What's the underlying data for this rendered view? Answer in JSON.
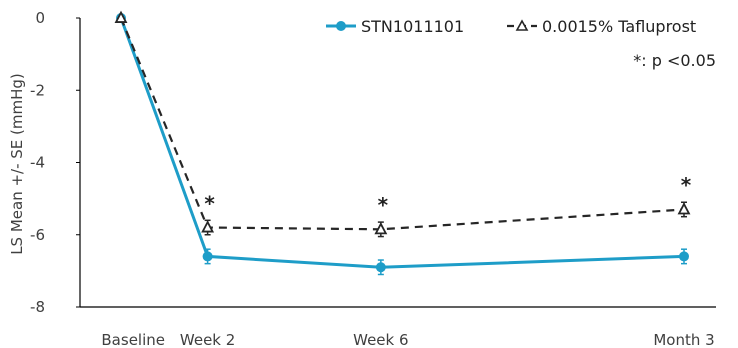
{
  "chart_data": {
    "type": "line",
    "categories": [
      "Baseline",
      "Week 2",
      "Week 6",
      "Month 3"
    ],
    "x": [
      0,
      2,
      6,
      13
    ],
    "ylabel": "LS Mean +/- SE (mmHg)",
    "ylim": [
      -8,
      0
    ],
    "yticks": [
      0,
      -2,
      -4,
      -6,
      -8
    ],
    "grid": false,
    "legend_position": "top-right",
    "series": [
      {
        "name": "STN1011101",
        "values": [
          0,
          -6.6,
          -6.9,
          -6.6
        ],
        "se": [
          0,
          0.2,
          0.2,
          0.2
        ],
        "color": "#1e9dc8",
        "marker": "circle",
        "line_style": "solid"
      },
      {
        "name": "0.0015% Tafluprost",
        "values": [
          0,
          -5.8,
          -5.85,
          -5.3
        ],
        "se": [
          0,
          0.2,
          0.2,
          0.2
        ],
        "color": "#262626",
        "marker": "triangle-open",
        "line_style": "dashed"
      }
    ],
    "annotations": [
      {
        "text": "*",
        "category_index": 1
      },
      {
        "text": "*",
        "category_index": 2
      },
      {
        "text": "*",
        "category_index": 3
      }
    ],
    "footnote": "*: p <0.05"
  }
}
